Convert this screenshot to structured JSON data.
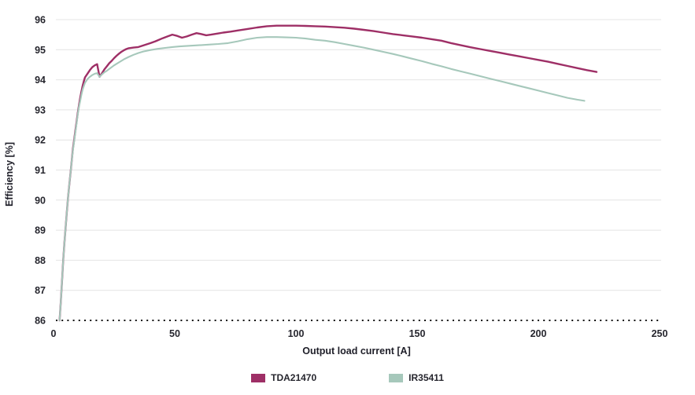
{
  "chart_data": {
    "type": "line",
    "title": "",
    "xlabel": "Output load current [A]",
    "ylabel": "Efficiency [%]",
    "xlim": [
      0,
      250
    ],
    "ylim": [
      86,
      96
    ],
    "xticks": [
      "0",
      "50",
      "100",
      "150",
      "200",
      "250"
    ],
    "yticks": [
      "86",
      "87",
      "88",
      "89",
      "90",
      "91",
      "92",
      "93",
      "94",
      "95",
      "96"
    ],
    "grid": "horizontal-light-gray",
    "baseline_style": "dotted-black-at-86",
    "legend_position": "bottom-center",
    "colors": {
      "grid": "#e4e4e4",
      "baseline": "#111111",
      "text": "#26262e"
    },
    "series": [
      {
        "name": "TDA21470",
        "color": "#9e2f66",
        "points": [
          [
            2.5,
            86.0
          ],
          [
            3,
            86.6
          ],
          [
            3.5,
            87.3
          ],
          [
            4,
            88.0
          ],
          [
            4.5,
            88.6
          ],
          [
            5,
            89.1
          ],
          [
            5.5,
            89.6
          ],
          [
            6,
            90.1
          ],
          [
            6.5,
            90.5
          ],
          [
            7,
            90.9
          ],
          [
            7.5,
            91.3
          ],
          [
            8,
            91.7
          ],
          [
            8.5,
            92.0
          ],
          [
            9,
            92.3
          ],
          [
            9.5,
            92.6
          ],
          [
            10,
            92.9
          ],
          [
            10.5,
            93.15
          ],
          [
            11,
            93.4
          ],
          [
            11.5,
            93.6
          ],
          [
            12,
            93.8
          ],
          [
            12.5,
            93.95
          ],
          [
            13,
            94.08
          ],
          [
            14,
            94.2
          ],
          [
            15,
            94.32
          ],
          [
            16,
            94.42
          ],
          [
            17,
            94.48
          ],
          [
            18,
            94.52
          ],
          [
            19,
            94.1
          ],
          [
            20,
            94.22
          ],
          [
            21,
            94.35
          ],
          [
            22,
            94.45
          ],
          [
            23,
            94.55
          ],
          [
            24,
            94.63
          ],
          [
            25,
            94.72
          ],
          [
            26,
            94.8
          ],
          [
            27,
            94.87
          ],
          [
            28,
            94.93
          ],
          [
            29,
            94.98
          ],
          [
            30,
            95.02
          ],
          [
            31,
            95.05
          ],
          [
            33,
            95.07
          ],
          [
            35,
            95.09
          ],
          [
            37,
            95.14
          ],
          [
            40,
            95.22
          ],
          [
            42,
            95.28
          ],
          [
            45,
            95.38
          ],
          [
            47,
            95.44
          ],
          [
            49,
            95.5
          ],
          [
            51,
            95.46
          ],
          [
            53,
            95.4
          ],
          [
            55,
            95.44
          ],
          [
            57,
            95.5
          ],
          [
            59,
            95.55
          ],
          [
            61,
            95.52
          ],
          [
            63,
            95.48
          ],
          [
            65,
            95.5
          ],
          [
            68,
            95.54
          ],
          [
            70,
            95.57
          ],
          [
            73,
            95.6
          ],
          [
            76,
            95.64
          ],
          [
            80,
            95.69
          ],
          [
            84,
            95.74
          ],
          [
            88,
            95.78
          ],
          [
            92,
            95.8
          ],
          [
            96,
            95.8
          ],
          [
            100,
            95.8
          ],
          [
            104,
            95.79
          ],
          [
            108,
            95.78
          ],
          [
            112,
            95.77
          ],
          [
            116,
            95.75
          ],
          [
            120,
            95.73
          ],
          [
            124,
            95.7
          ],
          [
            128,
            95.66
          ],
          [
            132,
            95.62
          ],
          [
            136,
            95.57
          ],
          [
            140,
            95.52
          ],
          [
            144,
            95.48
          ],
          [
            148,
            95.44
          ],
          [
            152,
            95.4
          ],
          [
            156,
            95.35
          ],
          [
            160,
            95.3
          ],
          [
            164,
            95.22
          ],
          [
            168,
            95.15
          ],
          [
            172,
            95.08
          ],
          [
            176,
            95.02
          ],
          [
            180,
            94.96
          ],
          [
            184,
            94.9
          ],
          [
            188,
            94.84
          ],
          [
            192,
            94.78
          ],
          [
            196,
            94.72
          ],
          [
            200,
            94.66
          ],
          [
            204,
            94.6
          ],
          [
            208,
            94.53
          ],
          [
            212,
            94.46
          ],
          [
            216,
            94.39
          ],
          [
            220,
            94.32
          ],
          [
            224,
            94.26
          ]
        ]
      },
      {
        "name": "IR35411",
        "color": "#a6c8bb",
        "points": [
          [
            2.5,
            86.0
          ],
          [
            3,
            86.6
          ],
          [
            3.5,
            87.3
          ],
          [
            4,
            88.0
          ],
          [
            4.5,
            88.6
          ],
          [
            5,
            89.1
          ],
          [
            5.5,
            89.6
          ],
          [
            6,
            90.1
          ],
          [
            6.5,
            90.5
          ],
          [
            7,
            90.9
          ],
          [
            7.5,
            91.3
          ],
          [
            8,
            91.65
          ],
          [
            8.5,
            91.95
          ],
          [
            9,
            92.25
          ],
          [
            9.5,
            92.55
          ],
          [
            10,
            92.85
          ],
          [
            10.5,
            93.1
          ],
          [
            11,
            93.3
          ],
          [
            11.5,
            93.5
          ],
          [
            12,
            93.68
          ],
          [
            13,
            93.9
          ],
          [
            14,
            94.02
          ],
          [
            15,
            94.1
          ],
          [
            16,
            94.16
          ],
          [
            17,
            94.2
          ],
          [
            18,
            94.22
          ],
          [
            19,
            94.1
          ],
          [
            20,
            94.18
          ],
          [
            21,
            94.25
          ],
          [
            22,
            94.3
          ],
          [
            23,
            94.36
          ],
          [
            25,
            94.48
          ],
          [
            27,
            94.58
          ],
          [
            29,
            94.68
          ],
          [
            31,
            94.76
          ],
          [
            33,
            94.83
          ],
          [
            35,
            94.89
          ],
          [
            37,
            94.94
          ],
          [
            40,
            94.99
          ],
          [
            43,
            95.03
          ],
          [
            46,
            95.06
          ],
          [
            49,
            95.09
          ],
          [
            52,
            95.11
          ],
          [
            56,
            95.13
          ],
          [
            60,
            95.15
          ],
          [
            64,
            95.17
          ],
          [
            68,
            95.19
          ],
          [
            72,
            95.22
          ],
          [
            76,
            95.28
          ],
          [
            80,
            95.35
          ],
          [
            84,
            95.4
          ],
          [
            88,
            95.42
          ],
          [
            92,
            95.42
          ],
          [
            96,
            95.41
          ],
          [
            100,
            95.4
          ],
          [
            104,
            95.37
          ],
          [
            108,
            95.33
          ],
          [
            112,
            95.3
          ],
          [
            116,
            95.25
          ],
          [
            120,
            95.19
          ],
          [
            124,
            95.13
          ],
          [
            128,
            95.07
          ],
          [
            132,
            95.0
          ],
          [
            136,
            94.93
          ],
          [
            140,
            94.86
          ],
          [
            144,
            94.78
          ],
          [
            148,
            94.7
          ],
          [
            152,
            94.62
          ],
          [
            156,
            94.53
          ],
          [
            160,
            94.45
          ],
          [
            164,
            94.36
          ],
          [
            168,
            94.28
          ],
          [
            172,
            94.2
          ],
          [
            176,
            94.12
          ],
          [
            180,
            94.04
          ],
          [
            184,
            93.96
          ],
          [
            188,
            93.88
          ],
          [
            192,
            93.8
          ],
          [
            196,
            93.72
          ],
          [
            200,
            93.64
          ],
          [
            204,
            93.56
          ],
          [
            208,
            93.48
          ],
          [
            212,
            93.4
          ],
          [
            216,
            93.34
          ],
          [
            219,
            93.3
          ]
        ]
      }
    ]
  }
}
